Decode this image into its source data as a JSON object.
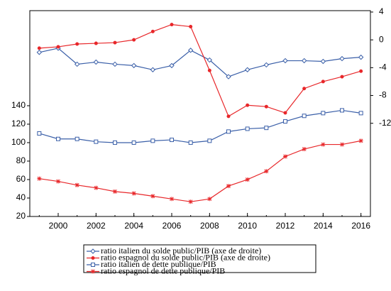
{
  "chart_data": {
    "type": "line",
    "x": [
      1999,
      2000,
      2001,
      2002,
      2003,
      2004,
      2005,
      2006,
      2007,
      2008,
      2009,
      2010,
      2011,
      2012,
      2013,
      2014,
      2015,
      2016
    ],
    "xlim": [
      1998.5,
      2016.5
    ],
    "xticks": [
      2000,
      2002,
      2004,
      2006,
      2008,
      2010,
      2012,
      2014,
      2016
    ],
    "ylim": [
      20,
      243
    ],
    "yticks": [
      20,
      40,
      60,
      80,
      100,
      120,
      140
    ],
    "y2lim": [
      -25.4,
      4.2
    ],
    "y2ticks": [
      4,
      0,
      -4,
      -8,
      -12
    ],
    "series": [
      {
        "name": "ratio italien du solde public/PIB (axe de droite)",
        "color": "#3a5fa8",
        "marker": "diamond",
        "axis": "y2",
        "values": [
          -1.8,
          -1.2,
          -3.5,
          -3.2,
          -3.5,
          -3.7,
          -4.3,
          -3.7,
          -1.5,
          -2.9,
          -5.3,
          -4.3,
          -3.6,
          -3.0,
          -3.0,
          -3.1,
          -2.7,
          -2.5
        ]
      },
      {
        "name": "ratio espagnol du solde public/PIB (axe de droite)",
        "color": "#e8272a",
        "marker": "circle",
        "axis": "y2",
        "values": [
          -1.2,
          -1.0,
          -0.6,
          -0.5,
          -0.4,
          0.0,
          1.2,
          2.2,
          1.9,
          -4.4,
          -11.0,
          -9.4,
          -9.6,
          -10.5,
          -7.0,
          -6.0,
          -5.3,
          -4.5
        ]
      },
      {
        "name": "ratio italien de dette publique/PIB",
        "color": "#3a5fa8",
        "marker": "square",
        "values": [
          110,
          104,
          104,
          101,
          100,
          100,
          102,
          103,
          100,
          102,
          112,
          115,
          116,
          123,
          129,
          132,
          135,
          132
        ]
      },
      {
        "name": "ratio espagnol de dette publique/PIB",
        "color": "#e8272a",
        "marker": "star",
        "values": [
          61,
          58,
          54,
          51,
          47,
          45,
          42,
          39,
          36,
          39,
          53,
          60,
          69,
          85,
          93,
          98,
          98,
          102
        ]
      }
    ]
  }
}
